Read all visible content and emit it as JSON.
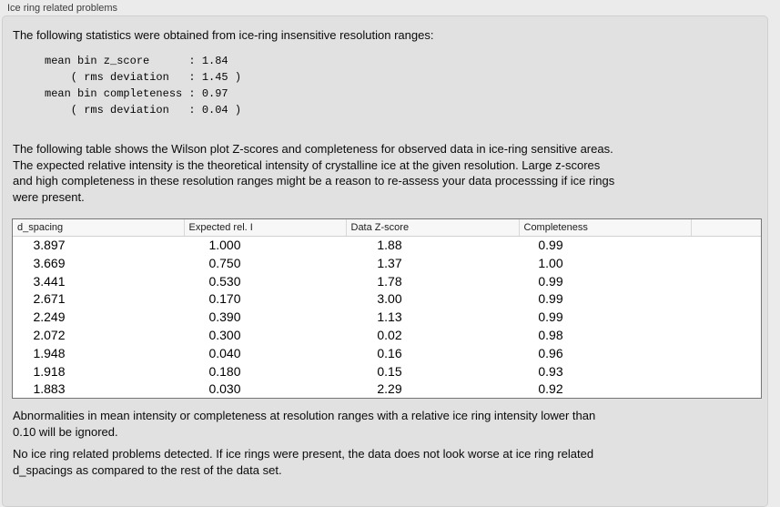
{
  "panel": {
    "title": "Ice ring related problems"
  },
  "intro": {
    "text": "The following statistics were obtained from ice-ring insensitive resolution ranges:"
  },
  "stats_block": {
    "text": "mean bin z_score      : 1.84\n    ( rms deviation   : 1.45 )\nmean bin completeness : 0.97\n    ( rms deviation   : 0.04 )"
  },
  "table_description": {
    "text": "The following table shows the Wilson plot Z-scores and completeness for observed data in ice-ring sensitive areas.\nThe expected relative intensity is the theoretical intensity of crystalline ice at the given resolution. Large z-scores\nand high completeness in these resolution ranges might be a reason to re-assess your data processsing if ice rings\nwere present."
  },
  "table": {
    "columns": [
      "d_spacing",
      "Expected rel. I",
      "Data Z-score",
      "Completeness"
    ],
    "rows": [
      [
        "3.897",
        "1.000",
        "1.88",
        "0.99"
      ],
      [
        "3.669",
        "0.750",
        "1.37",
        "1.00"
      ],
      [
        "3.441",
        "0.530",
        "1.78",
        "0.99"
      ],
      [
        "2.671",
        "0.170",
        "3.00",
        "0.99"
      ],
      [
        "2.249",
        "0.390",
        "1.13",
        "0.99"
      ],
      [
        "2.072",
        "0.300",
        "0.02",
        "0.98"
      ],
      [
        "1.948",
        "0.040",
        "0.16",
        "0.96"
      ],
      [
        "1.918",
        "0.180",
        "0.15",
        "0.93"
      ],
      [
        "1.883",
        "0.030",
        "2.29",
        "0.92"
      ]
    ]
  },
  "footnotes": {
    "ignore_note": "Abnormalities in mean intensity or completeness at resolution ranges with a relative ice ring intensity lower than\n0.10 will be ignored.",
    "conclusion": "No ice ring related problems detected. If ice rings were present, the data does not look worse at ice ring related\nd_spacings as compared to the rest of the data set."
  },
  "colors": {
    "outer_background": "#ebebeb",
    "panel_background": "#e1e1e1",
    "panel_border": "#cfcfcf",
    "table_background": "#ffffff",
    "table_border": "#767676",
    "table_header_background": "#f7f7f7"
  }
}
